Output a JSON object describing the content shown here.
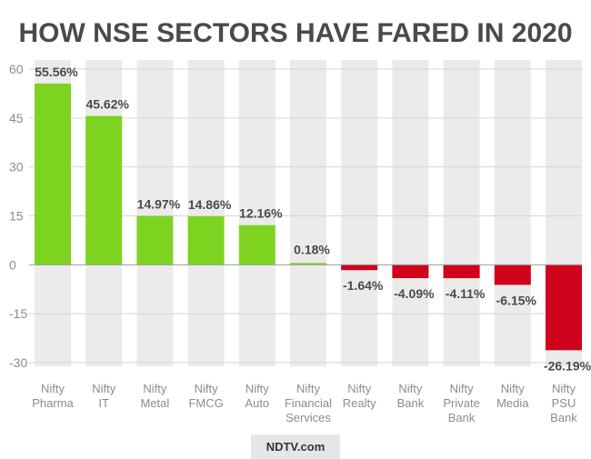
{
  "chart_data": {
    "type": "bar",
    "title": "HOW NSE SECTORS HAVE FARED IN 2020",
    "xlabel": "",
    "ylabel": "",
    "ylim": [
      -30,
      60
    ],
    "yticks": [
      60,
      45,
      30,
      15,
      0,
      -15,
      -30
    ],
    "grid": true,
    "categories": [
      [
        "Nifty",
        "Pharma"
      ],
      [
        "Nifty",
        "IT"
      ],
      [
        "Nifty",
        "Metal"
      ],
      [
        "Nifty",
        "FMCG"
      ],
      [
        "Nifty",
        "Auto"
      ],
      [
        "Nifty",
        "Financial",
        "Services"
      ],
      [
        "Nifty",
        "Realty"
      ],
      [
        "Nifty",
        "Bank"
      ],
      [
        "Nifty",
        "Private",
        "Bank"
      ],
      [
        "Nifty",
        "Media"
      ],
      [
        "Nifty",
        "PSU",
        "Bank"
      ]
    ],
    "values": [
      55.56,
      45.62,
      14.97,
      14.86,
      12.16,
      0.18,
      -1.64,
      -4.09,
      -4.11,
      -6.15,
      -26.19
    ],
    "value_labels": [
      "55.56%",
      "45.62%",
      "14.97%",
      "14.86%",
      "12.16%",
      "0.18%",
      "-1.64%",
      "-4.09%",
      "-4.11%",
      "-6.15%",
      "-26.19%"
    ],
    "colors": {
      "positive": "#7ed321",
      "negative": "#d0021b",
      "column_band": "#ebebeb",
      "grid": "#d6d6d6",
      "axis_text": "#8c8c8c",
      "label_text": "#4a4a4a"
    }
  },
  "footer": {
    "brand": "NDTV.com"
  }
}
